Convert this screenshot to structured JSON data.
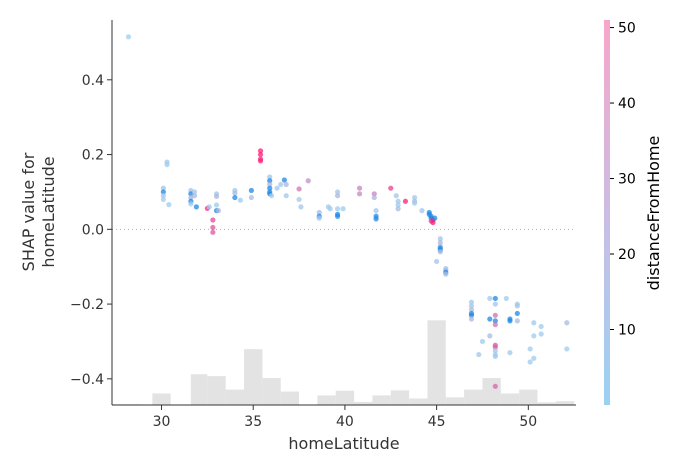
{
  "chart_data": {
    "type": "scatter",
    "xlabel": "homeLatitude",
    "ylabel_lines": [
      "SHAP value for",
      "homeLatitude"
    ],
    "colorbar_label": "distanceFromHome",
    "xlim": [
      27.3,
      52.6
    ],
    "ylim": [
      -0.47,
      0.56
    ],
    "xticks": [
      30,
      35,
      40,
      45,
      50
    ],
    "yticks": [
      -0.4,
      -0.2,
      0.0,
      0.2,
      0.4
    ],
    "ytick_labels": [
      "−0.4",
      "−0.2",
      "0.0",
      "0.2",
      "0.4"
    ],
    "color_range": [
      0,
      51
    ],
    "colorbar_ticks": [
      10,
      20,
      30,
      40,
      50
    ],
    "colors": {
      "low": "#9ad2f2",
      "high": "#ff1a72",
      "strong_blue": "#1e88e5",
      "hist": "#e3e3e3"
    },
    "zero_line": true,
    "histogram": [
      {
        "x0": 27.3,
        "x1": 28.9,
        "h": 0.002
      },
      {
        "x0": 29.5,
        "x1": 30.5,
        "h": 0.03
      },
      {
        "x0": 31.6,
        "x1": 32.5,
        "h": 0.08
      },
      {
        "x0": 32.5,
        "x1": 33.5,
        "h": 0.075
      },
      {
        "x0": 33.5,
        "x1": 34.5,
        "h": 0.04
      },
      {
        "x0": 34.5,
        "x1": 35.5,
        "h": 0.145
      },
      {
        "x0": 35.5,
        "x1": 36.5,
        "h": 0.07
      },
      {
        "x0": 36.5,
        "x1": 37.5,
        "h": 0.035
      },
      {
        "x0": 38.5,
        "x1": 39.5,
        "h": 0.025
      },
      {
        "x0": 39.5,
        "x1": 40.5,
        "h": 0.037
      },
      {
        "x0": 40.5,
        "x1": 41.5,
        "h": 0.008
      },
      {
        "x0": 41.5,
        "x1": 42.5,
        "h": 0.025
      },
      {
        "x0": 42.5,
        "x1": 43.5,
        "h": 0.038
      },
      {
        "x0": 43.5,
        "x1": 44.5,
        "h": 0.017
      },
      {
        "x0": 44.5,
        "x1": 45.5,
        "h": 0.22
      },
      {
        "x0": 45.5,
        "x1": 46.5,
        "h": 0.02
      },
      {
        "x0": 46.5,
        "x1": 47.5,
        "h": 0.04
      },
      {
        "x0": 47.5,
        "x1": 48.5,
        "h": 0.07
      },
      {
        "x0": 48.5,
        "x1": 49.5,
        "h": 0.03
      },
      {
        "x0": 49.5,
        "x1": 50.5,
        "h": 0.04
      },
      {
        "x0": 50.5,
        "x1": 51.5,
        "h": 0.007
      },
      {
        "x0": 51.5,
        "x1": 52.5,
        "h": 0.01
      }
    ],
    "points": [
      {
        "x": 28.2,
        "y": 0.515,
        "c": 1
      },
      {
        "x": 30.1,
        "y": 0.11,
        "c": 5
      },
      {
        "x": 30.1,
        "y": 0.1,
        "c": 10
      },
      {
        "x": 30.1,
        "y": 0.09,
        "c": 4
      },
      {
        "x": 30.1,
        "y": 0.08,
        "c": 2
      },
      {
        "x": 30.3,
        "y": 0.18,
        "c": 3
      },
      {
        "x": 30.3,
        "y": 0.173,
        "c": 2
      },
      {
        "x": 30.4,
        "y": 0.066,
        "c": 2
      },
      {
        "x": 31.6,
        "y": 0.104,
        "c": 5
      },
      {
        "x": 31.6,
        "y": 0.095,
        "c": 12
      },
      {
        "x": 31.6,
        "y": 0.085,
        "c": 8
      },
      {
        "x": 31.6,
        "y": 0.075,
        "c": 14
      },
      {
        "x": 31.6,
        "y": 0.068,
        "c": 2
      },
      {
        "x": 31.8,
        "y": 0.1,
        "c": 4
      },
      {
        "x": 31.8,
        "y": 0.09,
        "c": 6
      },
      {
        "x": 31.9,
        "y": 0.06,
        "c": 10
      },
      {
        "x": 32.5,
        "y": 0.056,
        "c": 45
      },
      {
        "x": 32.6,
        "y": 0.06,
        "c": 3
      },
      {
        "x": 32.8,
        "y": 0.025,
        "c": 38
      },
      {
        "x": 32.8,
        "y": 0.005,
        "c": 36
      },
      {
        "x": 32.8,
        "y": -0.008,
        "c": 34
      },
      {
        "x": 33,
        "y": 0.095,
        "c": 4
      },
      {
        "x": 33,
        "y": 0.088,
        "c": 8
      },
      {
        "x": 33,
        "y": 0.065,
        "c": 2
      },
      {
        "x": 33,
        "y": 0.05,
        "c": 12
      },
      {
        "x": 33.1,
        "y": 0.05,
        "c": 8
      },
      {
        "x": 34,
        "y": 0.104,
        "c": 3
      },
      {
        "x": 34,
        "y": 0.097,
        "c": 6
      },
      {
        "x": 34,
        "y": 0.085,
        "c": 12
      },
      {
        "x": 34.3,
        "y": 0.078,
        "c": 2
      },
      {
        "x": 34.9,
        "y": 0.104,
        "c": 14
      },
      {
        "x": 34.9,
        "y": 0.085,
        "c": 6
      },
      {
        "x": 35.4,
        "y": 0.21,
        "c": 50
      },
      {
        "x": 35.4,
        "y": 0.2,
        "c": 50
      },
      {
        "x": 35.4,
        "y": 0.188,
        "c": 49
      },
      {
        "x": 35.4,
        "y": 0.183,
        "c": 50
      },
      {
        "x": 35.9,
        "y": 0.14,
        "c": 4
      },
      {
        "x": 35.9,
        "y": 0.13,
        "c": 10
      },
      {
        "x": 35.9,
        "y": 0.12,
        "c": 8
      },
      {
        "x": 35.9,
        "y": 0.11,
        "c": 12
      },
      {
        "x": 35.9,
        "y": 0.1,
        "c": 14
      },
      {
        "x": 35.9,
        "y": 0.095,
        "c": 10
      },
      {
        "x": 36,
        "y": 0.09,
        "c": 3
      },
      {
        "x": 36.3,
        "y": 0.11,
        "c": 3
      },
      {
        "x": 36.5,
        "y": 0.12,
        "c": 3
      },
      {
        "x": 36.7,
        "y": 0.132,
        "c": 12
      },
      {
        "x": 36.8,
        "y": 0.12,
        "c": 8
      },
      {
        "x": 36.8,
        "y": 0.09,
        "c": 3
      },
      {
        "x": 37.5,
        "y": 0.108,
        "c": 26
      },
      {
        "x": 37.5,
        "y": 0.08,
        "c": 2
      },
      {
        "x": 37.6,
        "y": 0.06,
        "c": 3
      },
      {
        "x": 38,
        "y": 0.13,
        "c": 18
      },
      {
        "x": 38.6,
        "y": 0.045,
        "c": 6
      },
      {
        "x": 38.6,
        "y": 0.035,
        "c": 10
      },
      {
        "x": 38.6,
        "y": 0.03,
        "c": 3
      },
      {
        "x": 39.1,
        "y": 0.06,
        "c": 3
      },
      {
        "x": 39.2,
        "y": 0.055,
        "c": 2
      },
      {
        "x": 39.6,
        "y": 0.1,
        "c": 4
      },
      {
        "x": 39.6,
        "y": 0.09,
        "c": 8
      },
      {
        "x": 39.6,
        "y": 0.055,
        "c": 2
      },
      {
        "x": 39.6,
        "y": 0.04,
        "c": 10
      },
      {
        "x": 39.6,
        "y": 0.035,
        "c": 14
      },
      {
        "x": 39.9,
        "y": 0.055,
        "c": 2
      },
      {
        "x": 40.8,
        "y": 0.11,
        "c": 22
      },
      {
        "x": 40.8,
        "y": 0.095,
        "c": 20
      },
      {
        "x": 41.6,
        "y": 0.095,
        "c": 22
      },
      {
        "x": 41.6,
        "y": 0.085,
        "c": 8
      },
      {
        "x": 41.7,
        "y": 0.05,
        "c": 3
      },
      {
        "x": 41.7,
        "y": 0.035,
        "c": 10
      },
      {
        "x": 41.7,
        "y": 0.028,
        "c": 14
      },
      {
        "x": 42.5,
        "y": 0.11,
        "c": 40
      },
      {
        "x": 42.8,
        "y": 0.09,
        "c": 3
      },
      {
        "x": 42.9,
        "y": 0.075,
        "c": 4
      },
      {
        "x": 42.9,
        "y": 0.065,
        "c": 2
      },
      {
        "x": 42.9,
        "y": 0.055,
        "c": 6
      },
      {
        "x": 43.3,
        "y": 0.075,
        "c": 50
      },
      {
        "x": 43.8,
        "y": 0.085,
        "c": 3
      },
      {
        "x": 43.8,
        "y": 0.075,
        "c": 6
      },
      {
        "x": 43.8,
        "y": 0.07,
        "c": 2
      },
      {
        "x": 44.2,
        "y": 0.05,
        "c": 3
      },
      {
        "x": 44.6,
        "y": 0.045,
        "c": 10
      },
      {
        "x": 44.6,
        "y": 0.04,
        "c": 14
      },
      {
        "x": 44.7,
        "y": 0.035,
        "c": 12
      },
      {
        "x": 44.7,
        "y": 0.03,
        "c": 16
      },
      {
        "x": 44.7,
        "y": 0.022,
        "c": 36
      },
      {
        "x": 44.8,
        "y": 0.025,
        "c": 50
      },
      {
        "x": 44.8,
        "y": 0.018,
        "c": 50
      },
      {
        "x": 44.9,
        "y": 0.03,
        "c": 12
      },
      {
        "x": 45,
        "y": -0.086,
        "c": 4
      },
      {
        "x": 45.2,
        "y": -0.025,
        "c": 4
      },
      {
        "x": 45.2,
        "y": -0.035,
        "c": 6
      },
      {
        "x": 45.2,
        "y": -0.045,
        "c": 8
      },
      {
        "x": 45.2,
        "y": -0.05,
        "c": 10
      },
      {
        "x": 45.2,
        "y": -0.055,
        "c": 12
      },
      {
        "x": 45.2,
        "y": -0.06,
        "c": 6
      },
      {
        "x": 45.5,
        "y": -0.105,
        "c": 6
      },
      {
        "x": 45.5,
        "y": -0.11,
        "c": 8
      },
      {
        "x": 45.5,
        "y": -0.115,
        "c": 12
      },
      {
        "x": 45.5,
        "y": -0.12,
        "c": 6
      },
      {
        "x": 46.9,
        "y": -0.195,
        "c": 3
      },
      {
        "x": 46.9,
        "y": -0.205,
        "c": 4
      },
      {
        "x": 46.9,
        "y": -0.215,
        "c": 6
      },
      {
        "x": 46.9,
        "y": -0.225,
        "c": 12
      },
      {
        "x": 46.9,
        "y": -0.23,
        "c": 14
      },
      {
        "x": 46.9,
        "y": -0.24,
        "c": 8
      },
      {
        "x": 47.3,
        "y": -0.335,
        "c": 3
      },
      {
        "x": 47.5,
        "y": -0.3,
        "c": 2
      },
      {
        "x": 47.9,
        "y": -0.185,
        "c": 3
      },
      {
        "x": 47.9,
        "y": -0.24,
        "c": 14
      },
      {
        "x": 47.9,
        "y": -0.285,
        "c": 6
      },
      {
        "x": 48.2,
        "y": -0.185,
        "c": 10
      },
      {
        "x": 48.2,
        "y": -0.2,
        "c": 4
      },
      {
        "x": 48.2,
        "y": -0.23,
        "c": 28
      },
      {
        "x": 48.2,
        "y": -0.245,
        "c": 12
      },
      {
        "x": 48.2,
        "y": -0.255,
        "c": 26
      },
      {
        "x": 48.2,
        "y": -0.31,
        "c": 34
      },
      {
        "x": 48.2,
        "y": -0.315,
        "c": 32
      },
      {
        "x": 48.2,
        "y": -0.325,
        "c": 4
      },
      {
        "x": 48.2,
        "y": -0.335,
        "c": 2
      },
      {
        "x": 48.2,
        "y": -0.34,
        "c": 3
      },
      {
        "x": 48.2,
        "y": -0.42,
        "c": 30
      },
      {
        "x": 48.8,
        "y": -0.185,
        "c": 2
      },
      {
        "x": 49,
        "y": -0.24,
        "c": 12
      },
      {
        "x": 49,
        "y": -0.245,
        "c": 14
      },
      {
        "x": 49,
        "y": -0.33,
        "c": 3
      },
      {
        "x": 49.4,
        "y": -0.2,
        "c": 3
      },
      {
        "x": 49.4,
        "y": -0.205,
        "c": 4
      },
      {
        "x": 49.4,
        "y": -0.225,
        "c": 10
      },
      {
        "x": 49.4,
        "y": -0.245,
        "c": 6
      },
      {
        "x": 50.1,
        "y": -0.32,
        "c": 2
      },
      {
        "x": 50.1,
        "y": -0.355,
        "c": 2
      },
      {
        "x": 50.3,
        "y": -0.25,
        "c": 3
      },
      {
        "x": 50.3,
        "y": -0.285,
        "c": 2
      },
      {
        "x": 50.3,
        "y": -0.345,
        "c": 2
      },
      {
        "x": 50.7,
        "y": -0.26,
        "c": 2
      },
      {
        "x": 50.7,
        "y": -0.28,
        "c": 2
      },
      {
        "x": 52.1,
        "y": -0.25,
        "c": 6
      },
      {
        "x": 52.1,
        "y": -0.32,
        "c": 2
      }
    ]
  }
}
